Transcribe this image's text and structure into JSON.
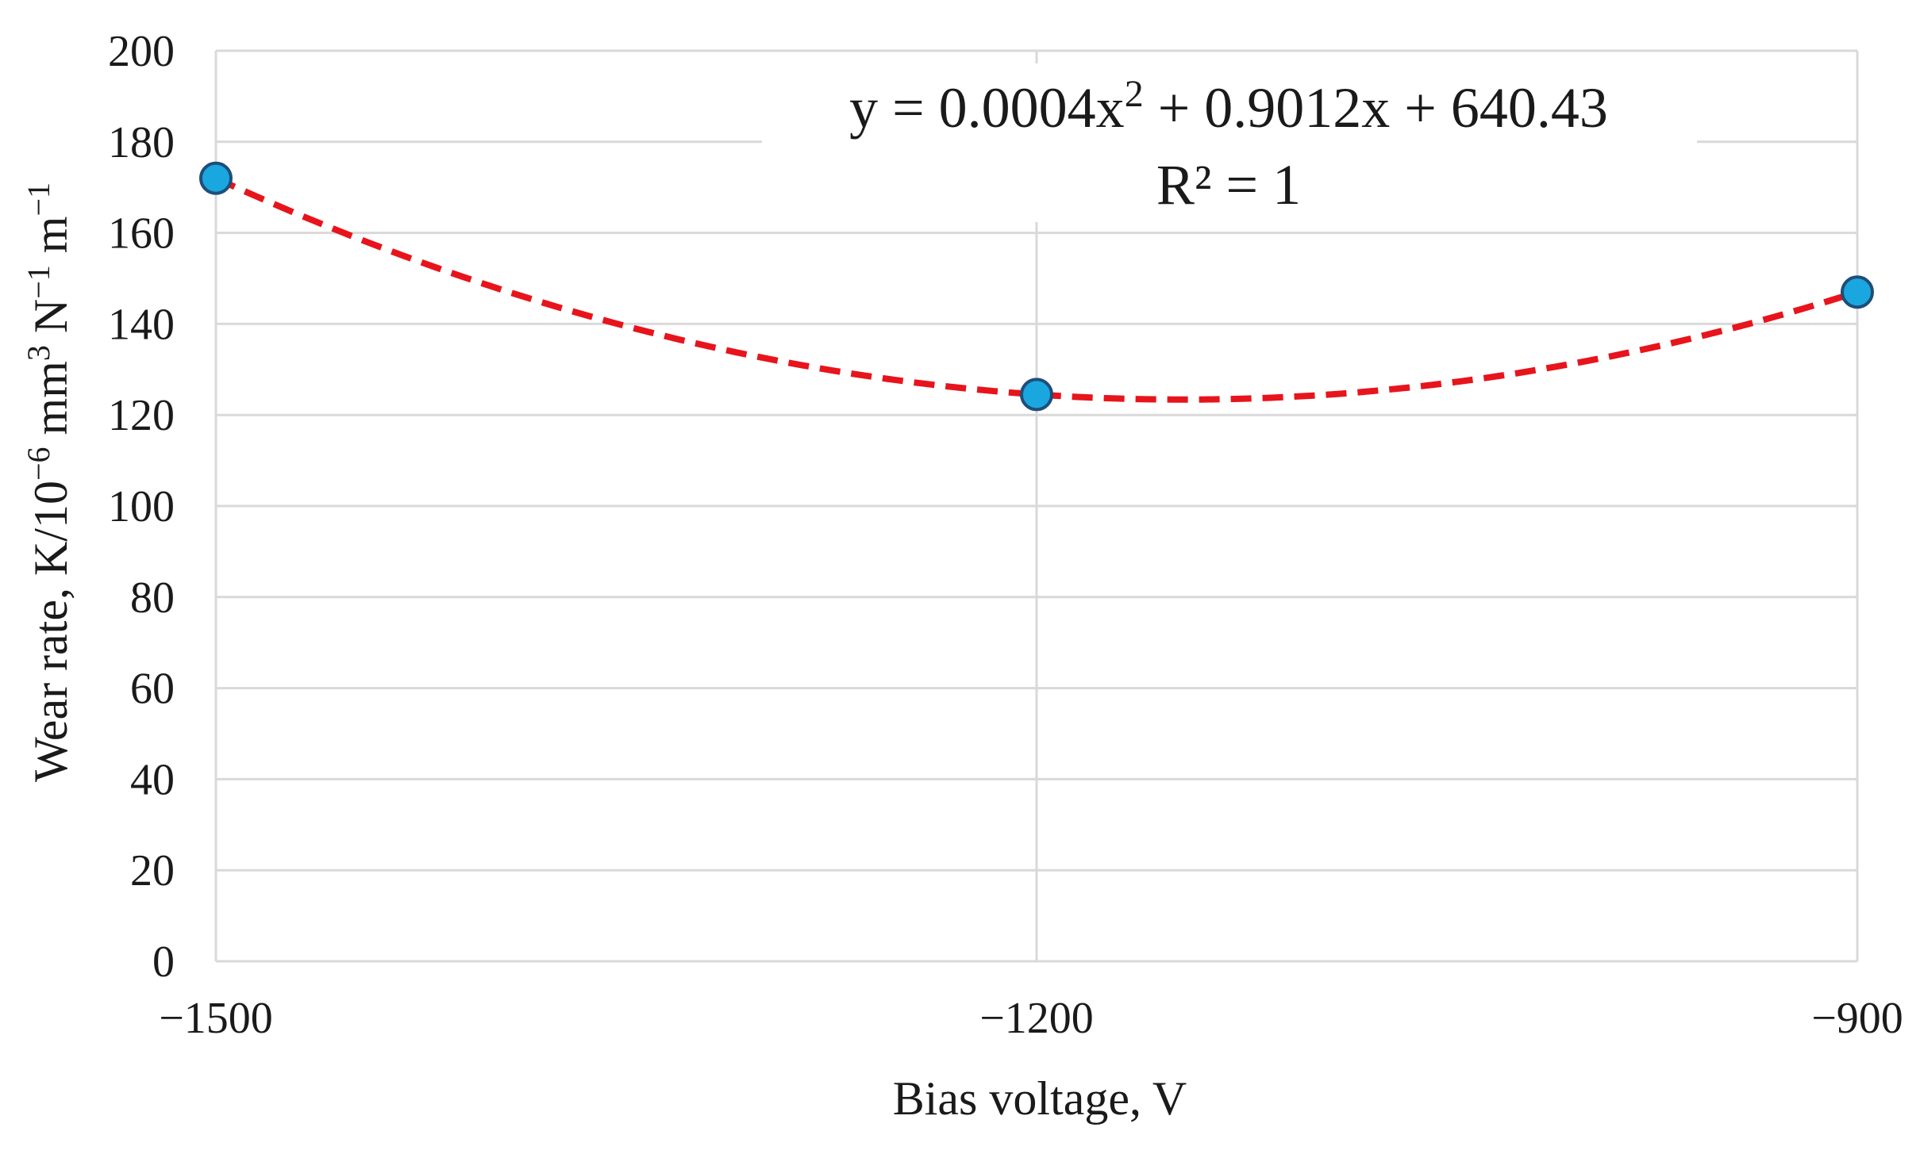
{
  "chart_data": {
    "type": "scatter",
    "x_axis": {
      "label_base": "Bias voltage, V",
      "range": [
        -1500,
        -900
      ],
      "ticks": [
        -1500,
        -1200,
        -900
      ],
      "tick_labels": [
        "−1500",
        "−1200",
        "−900"
      ]
    },
    "y_axis": {
      "label_parts": [
        {
          "text": "Wear rate, K/10"
        },
        {
          "text": "−6",
          "sup": true
        },
        {
          "text": " mm"
        },
        {
          "text": "3",
          "sup": true
        },
        {
          "text": " N"
        },
        {
          "text": "−1",
          "sup": true
        },
        {
          "text": " m"
        },
        {
          "text": "−1",
          "sup": true
        }
      ],
      "range": [
        0,
        200
      ],
      "ticks": [
        0,
        20,
        40,
        60,
        80,
        100,
        120,
        140,
        160,
        180,
        200
      ]
    },
    "grid": true,
    "series": [
      {
        "marker_color": "#1aa7e0",
        "marker_edge": "#1f4e79",
        "points": [
          {
            "x": -1500,
            "y": 172
          },
          {
            "x": -1200,
            "y": 124.5
          },
          {
            "x": -900,
            "y": 147
          }
        ]
      }
    ],
    "trendline": {
      "type": "polynomial",
      "order": 2,
      "color": "#e8141c",
      "style": "dashed",
      "coefficients": {
        "a": 0.0004,
        "b": 0.9012,
        "c": 640.43
      },
      "equation_parts": [
        {
          "text": "y = 0.0004x"
        },
        {
          "text": "2",
          "sup": true
        },
        {
          "text": " + 0.9012x + 640.43"
        }
      ],
      "r_squared_text": "R² = 1"
    }
  }
}
